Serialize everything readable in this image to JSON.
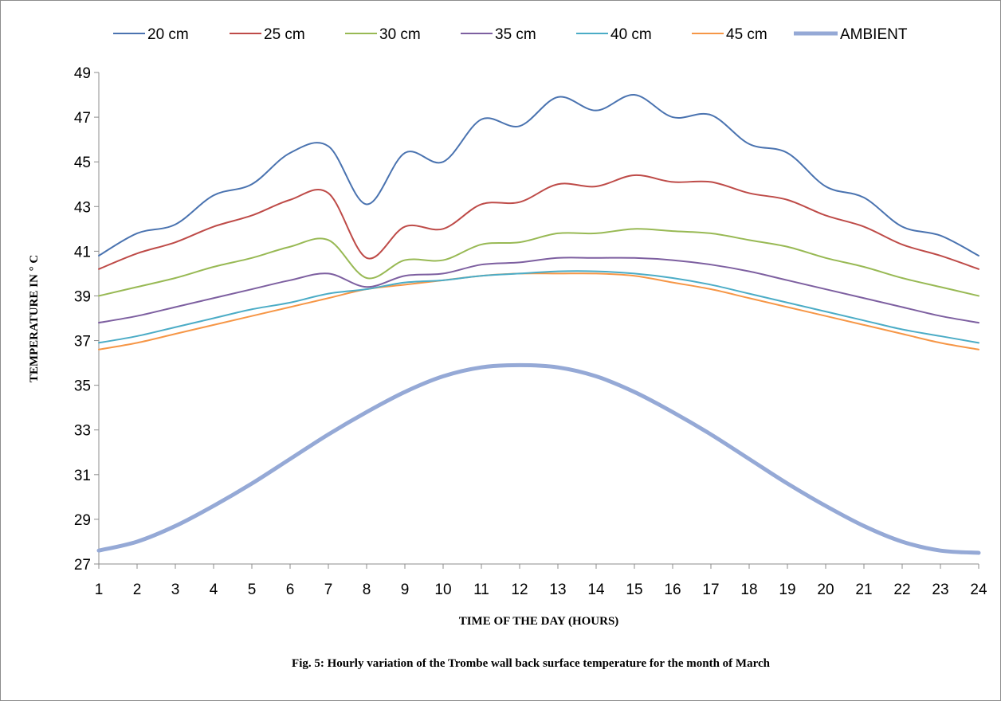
{
  "chart_data": {
    "type": "line",
    "title": "",
    "caption": "Fig. 5: Hourly variation of the Trombe wall back surface temperature for the month of March",
    "xlabel": "TIME OF THE DAY (HOURS)",
    "ylabel": "TEMPERATURE IN ° C",
    "ylim": [
      27,
      49
    ],
    "yticks": [
      27,
      29,
      31,
      33,
      35,
      37,
      39,
      41,
      43,
      45,
      47,
      49
    ],
    "grid": false,
    "legend_position": "top",
    "x": [
      1,
      2,
      3,
      4,
      5,
      6,
      7,
      8,
      9,
      10,
      11,
      12,
      13,
      14,
      15,
      16,
      17,
      18,
      19,
      20,
      21,
      22,
      23,
      24
    ],
    "series": [
      {
        "name": "20 cm",
        "color": "#4a73b0",
        "width": 2,
        "values": [
          40.8,
          41.8,
          42.2,
          43.5,
          44.0,
          45.4,
          45.7,
          43.1,
          45.4,
          45.0,
          46.9,
          46.6,
          47.9,
          47.3,
          48.0,
          47.0,
          47.1,
          45.8,
          45.4,
          43.9,
          43.4,
          42.1,
          41.7,
          40.8
        ]
      },
      {
        "name": "25 cm",
        "color": "#be4b48",
        "width": 2,
        "values": [
          40.2,
          40.9,
          41.4,
          42.1,
          42.6,
          43.3,
          43.6,
          40.7,
          42.1,
          42.0,
          43.1,
          43.2,
          44.0,
          43.9,
          44.4,
          44.1,
          44.1,
          43.6,
          43.3,
          42.6,
          42.1,
          41.3,
          40.8,
          40.2
        ]
      },
      {
        "name": "30 cm",
        "color": "#98b954",
        "width": 2,
        "values": [
          39.0,
          39.4,
          39.8,
          40.3,
          40.7,
          41.2,
          41.5,
          39.8,
          40.6,
          40.6,
          41.3,
          41.4,
          41.8,
          41.8,
          42.0,
          41.9,
          41.8,
          41.5,
          41.2,
          40.7,
          40.3,
          39.8,
          39.4,
          39.0
        ]
      },
      {
        "name": "35 cm",
        "color": "#7d5fa0",
        "width": 2,
        "values": [
          37.8,
          38.1,
          38.5,
          38.9,
          39.3,
          39.7,
          40.0,
          39.4,
          39.9,
          40.0,
          40.4,
          40.5,
          40.7,
          40.7,
          40.7,
          40.6,
          40.4,
          40.1,
          39.7,
          39.3,
          38.9,
          38.5,
          38.1,
          37.8
        ]
      },
      {
        "name": "40 cm",
        "color": "#4bacc6",
        "width": 2,
        "values": [
          36.9,
          37.2,
          37.6,
          38.0,
          38.4,
          38.7,
          39.1,
          39.3,
          39.6,
          39.7,
          39.9,
          40.0,
          40.1,
          40.1,
          40.0,
          39.8,
          39.5,
          39.1,
          38.7,
          38.3,
          37.9,
          37.5,
          37.2,
          36.9
        ]
      },
      {
        "name": "45 cm",
        "color": "#f69646",
        "width": 2,
        "values": [
          36.6,
          36.9,
          37.3,
          37.7,
          38.1,
          38.5,
          38.9,
          39.3,
          39.5,
          39.7,
          39.9,
          40.0,
          40.0,
          40.0,
          39.9,
          39.6,
          39.3,
          38.9,
          38.5,
          38.1,
          37.7,
          37.3,
          36.9,
          36.6
        ]
      },
      {
        "name": "AMBIENT",
        "color": "#95a9d6",
        "width": 5,
        "values": [
          27.6,
          28.0,
          28.7,
          29.6,
          30.6,
          31.7,
          32.8,
          33.8,
          34.7,
          35.4,
          35.8,
          35.9,
          35.8,
          35.4,
          34.7,
          33.8,
          32.8,
          31.7,
          30.6,
          29.6,
          28.7,
          28.0,
          27.6,
          27.5
        ]
      }
    ]
  }
}
